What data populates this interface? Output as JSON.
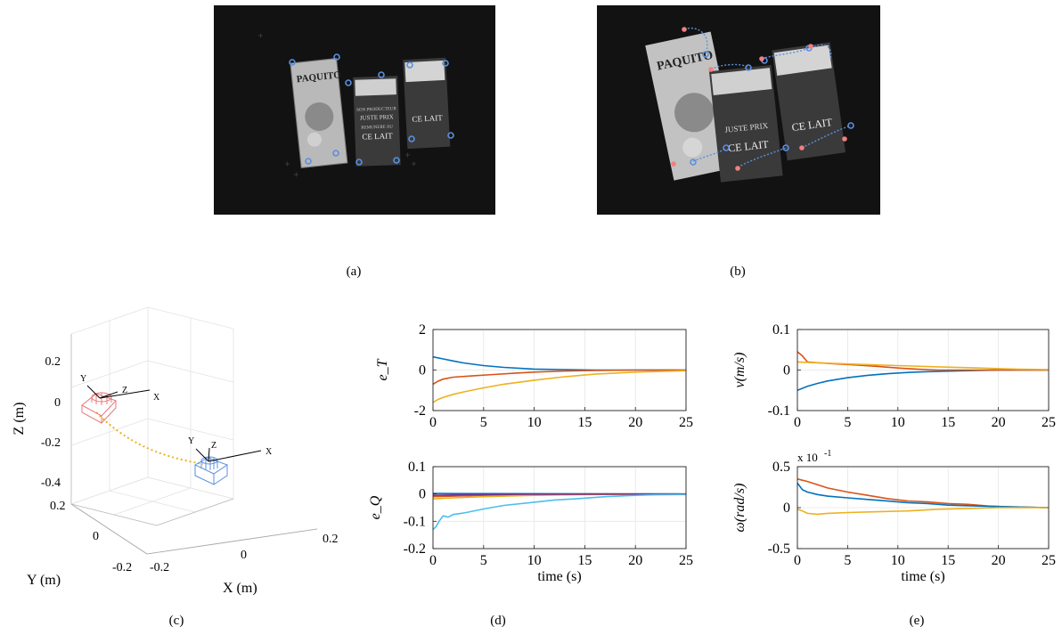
{
  "captions": {
    "a": "(a)",
    "b": "(b)",
    "c": "(c)",
    "d": "(d)",
    "e": "(e)"
  },
  "photos": {
    "a": {
      "brand": "PAQUITO",
      "carton_line1": "CE LAIT",
      "carton_line2": "JUSTE PRIX",
      "carton_line3": "REMUNERE AU",
      "carton_line4": "SON PRODUCTEUR"
    },
    "b": {
      "brand": "PAQUITO",
      "carton_line1": "CE LAIT",
      "carton_line2": "JUSTE PRIX"
    }
  },
  "colors": {
    "blue": "#0072BD",
    "orange": "#D95319",
    "yellow": "#EDB120",
    "cyan": "#4DBEEE",
    "red_frame": "#E8797A",
    "blue_frame": "#5B8FE0",
    "feature": "#5B8FE0",
    "star": "#F08080"
  },
  "chart_data": [
    {
      "id": "c",
      "type": "line3d",
      "xlabel": "X (m)",
      "ylabel": "Y (m)",
      "zlabel": "Z (m)",
      "xticks": [
        "-0.2",
        "0",
        "0.2"
      ],
      "yticks": [
        "-0.2",
        "0",
        "0.2"
      ],
      "zticks": [
        "0.2",
        "0",
        "-0.2",
        "-0.4"
      ],
      "frame_labels": {
        "x": "X",
        "y": "Y",
        "z": "Z"
      }
    },
    {
      "id": "d_top",
      "type": "line",
      "ylabel": "e_T",
      "xlim": [
        0,
        25
      ],
      "ylim": [
        -2,
        2
      ],
      "xticks": [
        "0",
        "5",
        "10",
        "15",
        "20",
        "25"
      ],
      "yticks": [
        "2",
        "0",
        "-2"
      ],
      "grid": true,
      "series": [
        {
          "color": "#0072BD",
          "x": [
            0,
            1,
            2,
            3,
            5,
            7,
            10,
            13,
            16,
            20,
            25
          ],
          "y": [
            0.65,
            0.55,
            0.45,
            0.35,
            0.22,
            0.13,
            0.05,
            0.02,
            0.0,
            0.0,
            0.0
          ]
        },
        {
          "color": "#D95319",
          "x": [
            0,
            0.5,
            1,
            2,
            4,
            6,
            8,
            10,
            13,
            16,
            20,
            25
          ],
          "y": [
            -0.7,
            -0.55,
            -0.45,
            -0.35,
            -0.28,
            -0.22,
            -0.16,
            -0.1,
            -0.05,
            -0.02,
            0.0,
            0.0
          ]
        },
        {
          "color": "#EDB120",
          "x": [
            0,
            0.5,
            1,
            2,
            3,
            5,
            7,
            10,
            13,
            16,
            20,
            25
          ],
          "y": [
            -1.6,
            -1.45,
            -1.35,
            -1.2,
            -1.08,
            -0.88,
            -0.7,
            -0.5,
            -0.33,
            -0.2,
            -0.1,
            -0.03
          ]
        }
      ]
    },
    {
      "id": "d_bottom",
      "type": "line",
      "ylabel": "e_Q",
      "xlabel": "time (s)",
      "xlim": [
        0,
        25
      ],
      "ylim": [
        -0.2,
        0.1
      ],
      "xticks": [
        "0",
        "5",
        "10",
        "15",
        "20",
        "25"
      ],
      "yticks": [
        "0.1",
        "0",
        "-0.1",
        "-0.2"
      ],
      "grid": true,
      "series": [
        {
          "color": "#0072BD",
          "x": [
            0,
            25
          ],
          "y": [
            0.002,
            0.0
          ]
        },
        {
          "color": "#D95319",
          "x": [
            0,
            2,
            5,
            10,
            15,
            25
          ],
          "y": [
            -0.01,
            -0.008,
            -0.005,
            -0.002,
            0.0,
            0.0
          ]
        },
        {
          "color": "#EDB120",
          "x": [
            0,
            2,
            5,
            10,
            15,
            25
          ],
          "y": [
            -0.018,
            -0.014,
            -0.01,
            -0.005,
            -0.002,
            0.0
          ]
        },
        {
          "color": "#7E2F8E",
          "x": [
            0,
            3,
            8,
            25
          ],
          "y": [
            -0.005,
            -0.003,
            -0.001,
            0.0
          ]
        },
        {
          "color": "#4DBEEE",
          "x": [
            0,
            0.3,
            0.6,
            1,
            1.5,
            2,
            3,
            5,
            7,
            10,
            12,
            14,
            17,
            20,
            22,
            25
          ],
          "y": [
            -0.13,
            -0.12,
            -0.1,
            -0.08,
            -0.085,
            -0.075,
            -0.07,
            -0.055,
            -0.042,
            -0.03,
            -0.022,
            -0.018,
            -0.01,
            -0.005,
            -0.003,
            -0.002
          ]
        }
      ]
    },
    {
      "id": "e_top",
      "type": "line",
      "ylabel": "v(m/s)",
      "xlim": [
        0,
        25
      ],
      "ylim": [
        -0.1,
        0.1
      ],
      "xticks": [
        "0",
        "5",
        "10",
        "15",
        "20",
        "25"
      ],
      "yticks": [
        "0.1",
        "0",
        "-0.1"
      ],
      "grid": true,
      "series": [
        {
          "color": "#0072BD",
          "x": [
            0,
            1,
            2,
            3,
            5,
            7,
            9,
            11,
            13,
            16,
            20,
            25
          ],
          "y": [
            -0.05,
            -0.04,
            -0.033,
            -0.027,
            -0.019,
            -0.013,
            -0.009,
            -0.006,
            -0.004,
            -0.002,
            0.0,
            0.0
          ]
        },
        {
          "color": "#D95319",
          "x": [
            0,
            0.5,
            1,
            2,
            4,
            6,
            8,
            10,
            12,
            14,
            18,
            25
          ],
          "y": [
            0.045,
            0.035,
            0.02,
            0.018,
            0.015,
            0.012,
            0.009,
            0.005,
            0.002,
            0.0,
            0.0,
            0.0
          ]
        },
        {
          "color": "#EDB120",
          "x": [
            0,
            1,
            3,
            6,
            10,
            14,
            18,
            22,
            25
          ],
          "y": [
            0.02,
            0.019,
            0.017,
            0.014,
            0.011,
            0.008,
            0.005,
            0.002,
            0.001
          ]
        }
      ]
    },
    {
      "id": "e_bottom",
      "type": "line",
      "ylabel": "ω(rad/s)",
      "xlabel": "time (s)",
      "scale_note": "x 10",
      "scale_exp": "-1",
      "xlim": [
        0,
        25
      ],
      "ylim": [
        -0.5,
        0.5
      ],
      "xticks": [
        "0",
        "5",
        "10",
        "15",
        "20",
        "25"
      ],
      "yticks": [
        "0.5",
        "0",
        "-0.5"
      ],
      "grid": true,
      "series": [
        {
          "color": "#D95319",
          "x": [
            0,
            1,
            2,
            3,
            5,
            7,
            9,
            11,
            13,
            15,
            17,
            19,
            21,
            23,
            25
          ],
          "y": [
            0.35,
            0.32,
            0.28,
            0.24,
            0.19,
            0.15,
            0.11,
            0.08,
            0.07,
            0.05,
            0.04,
            0.02,
            0.01,
            0.005,
            0.0
          ]
        },
        {
          "color": "#0072BD",
          "x": [
            0,
            0.5,
            1,
            2,
            3,
            5,
            7,
            9,
            11,
            13,
            15,
            18,
            21,
            25
          ],
          "y": [
            0.3,
            0.22,
            0.19,
            0.16,
            0.14,
            0.12,
            0.1,
            0.08,
            0.06,
            0.05,
            0.03,
            0.02,
            0.01,
            0.0
          ]
        },
        {
          "color": "#EDB120",
          "x": [
            0,
            0.5,
            1,
            2,
            3,
            5,
            8,
            11,
            14,
            17,
            20,
            25
          ],
          "y": [
            -0.02,
            -0.04,
            -0.07,
            -0.08,
            -0.07,
            -0.06,
            -0.05,
            -0.04,
            -0.02,
            -0.01,
            0.0,
            0.0
          ]
        }
      ]
    }
  ]
}
